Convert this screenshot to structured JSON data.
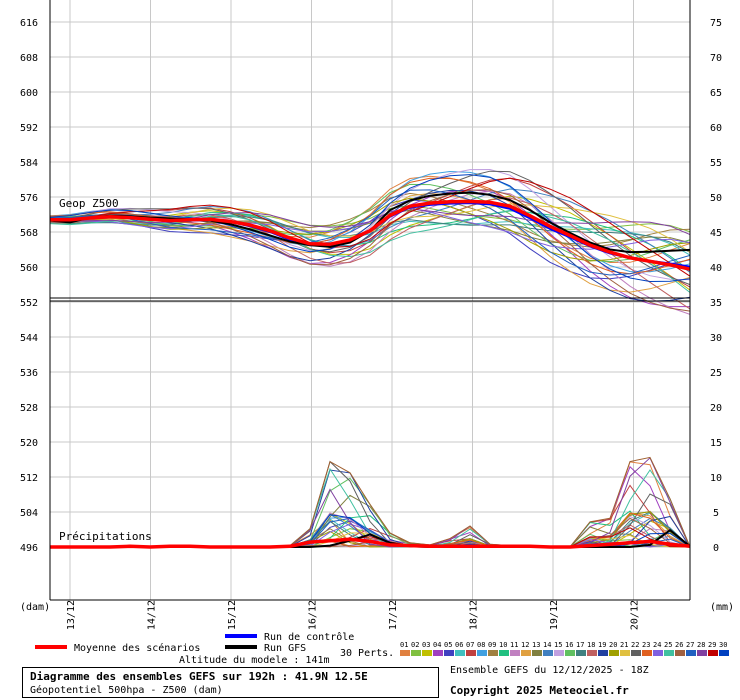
{
  "chart_data": {
    "type": "line",
    "title": "Diagramme des ensembles GEFS sur 192h : 41.9N 12.5E",
    "subtitle": "Géopotentiel 500hpa - Z500 (dam)",
    "run": "Ensemble GEFS du 12/12/2025 - 18Z",
    "copyright": "Copyright 2025 Meteociel.fr",
    "altitude": "Altitude du modele : 141m",
    "left_axis": {
      "unit_label": "(dam)",
      "ticks": [
        "616",
        "608",
        "600",
        "592",
        "584",
        "576",
        "568",
        "560",
        "552",
        "544",
        "536",
        "528",
        "520",
        "512",
        "504",
        "496"
      ],
      "range": [
        488,
        616
      ]
    },
    "right_axis": {
      "unit_label": "(mm)",
      "ticks": [
        "75",
        "70",
        "65",
        "60",
        "55",
        "50",
        "45",
        "40",
        "35",
        "30",
        "25",
        "20",
        "15",
        "10",
        "5",
        "0"
      ]
    },
    "x_ticks": [
      "13/12",
      "14/12",
      "15/12",
      "16/12",
      "17/12",
      "18/12",
      "19/12",
      "20/12"
    ],
    "x_hours_range": [
      0,
      192
    ],
    "panels": [
      "Geop Z500",
      "Précipitations"
    ],
    "grid": true,
    "z500": {
      "hours": [
        0,
        6,
        12,
        18,
        24,
        30,
        36,
        42,
        48,
        54,
        60,
        66,
        72,
        78,
        84,
        90,
        96,
        102,
        108,
        114,
        120,
        126,
        132,
        138,
        144,
        150,
        156,
        162,
        168,
        174,
        180,
        186,
        192
      ],
      "mean": [
        570.8,
        570.8,
        571.2,
        571.5,
        571.3,
        570.9,
        570.6,
        570.8,
        570.9,
        570.4,
        569.6,
        568.3,
        566.6,
        565.3,
        565.2,
        566.2,
        568.3,
        571.8,
        573.9,
        574.6,
        574.9,
        575.0,
        574.8,
        573.9,
        571.7,
        569.3,
        567.2,
        565.0,
        563.4,
        562.1,
        561.3,
        560.5,
        559.5
      ],
      "gfs": [
        570.6,
        570.2,
        571.3,
        571.7,
        571.6,
        571.3,
        571.1,
        570.9,
        570.6,
        569.8,
        568.6,
        567.2,
        565.8,
        565.0,
        564.6,
        565.6,
        568.3,
        573.0,
        575.2,
        576.3,
        576.8,
        577.0,
        576.5,
        575.3,
        573.0,
        570.2,
        567.8,
        565.6,
        564.0,
        563.4,
        563.5,
        563.7,
        563.9
      ],
      "control": [
        570.7,
        570.7,
        571.1,
        571.4,
        571.2,
        570.8,
        570.5,
        570.6,
        570.7,
        570.3,
        569.3,
        568.0,
        566.2,
        565.0,
        564.9,
        566.0,
        568.1,
        571.5,
        573.6,
        574.2,
        574.5,
        574.6,
        574.3,
        573.3,
        571.1,
        568.7,
        566.8,
        564.7,
        563.1,
        562.0,
        561.4,
        560.8,
        560.1
      ],
      "perturbation_count": 30
    },
    "precipitation_mm": {
      "hours": [
        0,
        6,
        12,
        18,
        24,
        30,
        36,
        42,
        48,
        54,
        60,
        66,
        72,
        78,
        84,
        90,
        96,
        102,
        108,
        114,
        120,
        126,
        132,
        138,
        144,
        150,
        156,
        162,
        168,
        174,
        180,
        186,
        192
      ],
      "mean": [
        0,
        0,
        0,
        0,
        0.1,
        0,
        0.1,
        0.1,
        0,
        0,
        0,
        0,
        0.1,
        0.7,
        0.9,
        1.1,
        0.8,
        0.3,
        0.2,
        0.1,
        0.1,
        0.1,
        0.1,
        0.1,
        0.1,
        0,
        0,
        0.2,
        0.4,
        0.6,
        0.8,
        0.4,
        0.1
      ],
      "gfs": [
        0,
        0,
        0,
        0,
        0,
        0,
        0,
        0,
        0,
        0,
        0,
        0,
        0,
        0,
        0.2,
        0.9,
        1.8,
        0.6,
        0.1,
        0,
        0,
        0,
        0,
        0,
        0,
        0,
        0,
        0,
        0,
        0,
        0.3,
        2.4,
        0.1
      ],
      "max_member": [
        0,
        0,
        0,
        0,
        0.1,
        0,
        0.2,
        0.2,
        0,
        0,
        0,
        0,
        0.2,
        2.6,
        12.2,
        10.6,
        6.1,
        2.0,
        0.6,
        0.3,
        1.2,
        3.0,
        0.4,
        0.2,
        0.1,
        0,
        0,
        3.6,
        4.1,
        12.2,
        12.8,
        6.9,
        0
      ]
    },
    "legend": {
      "mean": "Moyenne des scénarios",
      "control": "Run de contrôle",
      "gfs": "Run GFS",
      "perts": "30 Perts.",
      "colors": {
        "mean": "#ff0000",
        "control": "#0000ff",
        "gfs": "#000000"
      },
      "member_labels": [
        "01",
        "02",
        "03",
        "04",
        "05",
        "06",
        "07",
        "08",
        "09",
        "10",
        "11",
        "12",
        "13",
        "14",
        "15",
        "16",
        "17",
        "18",
        "19",
        "20",
        "21",
        "22",
        "23",
        "24",
        "25",
        "26",
        "27",
        "28",
        "29",
        "30"
      ],
      "member_colors": [
        "#e08040",
        "#80c040",
        "#c0c000",
        "#a040c0",
        "#4040c0",
        "#40c0c0",
        "#c04040",
        "#40a0e0",
        "#a08040",
        "#20c080",
        "#c080c0",
        "#e0a040",
        "#808040",
        "#4080c0",
        "#c0a0e0",
        "#60c060",
        "#408080",
        "#c06060",
        "#2040a0",
        "#a0a000",
        "#e0c040",
        "#606060",
        "#e06020",
        "#8060e0",
        "#40c0a0",
        "#a06040",
        "#2060c0",
        "#8040a0",
        "#c00000",
        "#0040c0"
      ]
    }
  }
}
